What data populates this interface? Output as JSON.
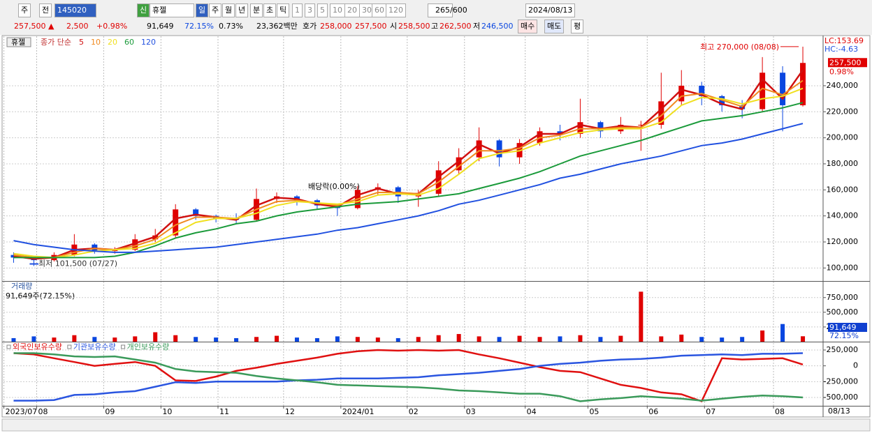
{
  "toolbar": {
    "row1": [
      "주",
      "전",
      "145020",
      "신",
      "휴젤",
      "일",
      "주",
      "월",
      "년",
      "분",
      "초",
      "틱",
      "1",
      "3",
      "5",
      "10",
      "20",
      "30",
      "60",
      "120",
      "265",
      "/600",
      "2024/08/13"
    ],
    "row2": [
      "257,500 ▲",
      "2,500",
      "+0.98%",
      "91,649",
      "72.15%",
      "0.73%",
      "23,362백만",
      "호가",
      "258,000",
      "257,500",
      "시",
      "258,500",
      "고",
      "262,500",
      "저",
      "246,500",
      "매수",
      "매도",
      "평"
    ]
  },
  "chart_data": [
    {
      "type": "candlestick",
      "title": "휴젤",
      "subtitle": "종가 단순",
      "open": [
        110000,
        108000,
        106000,
        110000,
        118000,
        113000,
        114000,
        122000,
        125000,
        145000,
        140000,
        138000,
        137000,
        153000,
        155000,
        152000,
        148000,
        146000,
        160000,
        162000,
        155000,
        157000,
        175000,
        185000,
        198000,
        185000,
        196000,
        205000,
        203000,
        212000,
        205000,
        210000,
        210000,
        228000,
        240000,
        232000,
        225000,
        222000,
        250000,
        225000
      ],
      "high": [
        112000,
        109000,
        112000,
        126000,
        119000,
        116000,
        126000,
        130000,
        149000,
        146000,
        141000,
        142000,
        161000,
        158000,
        156000,
        153000,
        149000,
        163000,
        165000,
        163000,
        160000,
        182000,
        192000,
        208000,
        199000,
        199000,
        208000,
        210000,
        230000,
        213000,
        216000,
        213000,
        250000,
        252000,
        243000,
        233000,
        229000,
        262000,
        255000,
        270000
      ],
      "low": [
        104000,
        101500,
        105000,
        109000,
        111000,
        111000,
        113000,
        120000,
        123000,
        137000,
        135000,
        134000,
        136000,
        150000,
        148000,
        145000,
        140000,
        145000,
        156000,
        150000,
        147000,
        155000,
        172000,
        182000,
        178000,
        180000,
        194000,
        198000,
        200000,
        200000,
        203000,
        190000,
        207000,
        225000,
        225000,
        220000,
        215000,
        220000,
        205000,
        224000
      ],
      "close": [
        108000,
        106000,
        110000,
        118000,
        113000,
        114000,
        122000,
        125000,
        145000,
        140000,
        138000,
        137000,
        153000,
        155000,
        152000,
        148000,
        146000,
        160000,
        162000,
        155000,
        157000,
        175000,
        185000,
        198000,
        185000,
        196000,
        205000,
        203000,
        212000,
        205000,
        210000,
        210000,
        228000,
        240000,
        232000,
        225000,
        222000,
        250000,
        225000,
        257500
      ],
      "up_color": "#e00000",
      "down_color": "#0a46e0",
      "series": [
        {
          "name": "5",
          "color": "#d01010",
          "values": [
            109000,
            107000,
            108000,
            114000,
            115000,
            114000,
            119000,
            124000,
            138000,
            141000,
            139000,
            137000,
            148000,
            154000,
            153000,
            149000,
            147000,
            156000,
            161000,
            157000,
            157000,
            170000,
            182000,
            195000,
            188000,
            193000,
            203000,
            203000,
            210000,
            207000,
            209000,
            208000,
            222000,
            237000,
            233000,
            226000,
            222000,
            245000,
            230000,
            252000
          ]
        },
        {
          "name": "10",
          "color": "#f08a20",
          "values": [
            110000,
            108000,
            108000,
            112000,
            115000,
            114000,
            117000,
            122000,
            133000,
            139000,
            139000,
            138000,
            145000,
            151000,
            152000,
            150000,
            148000,
            153000,
            158000,
            158000,
            157000,
            166000,
            178000,
            190000,
            190000,
            192000,
            200000,
            202000,
            207000,
            207000,
            208000,
            208000,
            217000,
            232000,
            234000,
            229000,
            224000,
            238000,
            233000,
            244000
          ]
        },
        {
          "name": "20",
          "color": "#f0e020",
          "values": [
            111000,
            109000,
            108000,
            110000,
            113000,
            114000,
            115000,
            119000,
            127000,
            135000,
            138000,
            138000,
            142000,
            148000,
            151000,
            150000,
            149000,
            151000,
            156000,
            157000,
            156000,
            161000,
            172000,
            184000,
            188000,
            190000,
            196000,
            200000,
            204000,
            206000,
            207000,
            207000,
            212000,
            225000,
            231000,
            230000,
            226000,
            230000,
            232000,
            238000
          ]
        },
        {
          "name": "60",
          "color": "#1a9a3a",
          "values": [
            108000,
            108000,
            108000,
            108000,
            108000,
            109000,
            112000,
            117000,
            123000,
            127000,
            130000,
            134000,
            136000,
            140000,
            143000,
            145000,
            147000,
            149000,
            150000,
            151000,
            153000,
            155000,
            157000,
            161000,
            165000,
            169000,
            174000,
            180000,
            186000,
            190000,
            194000,
            198000,
            203000,
            208000,
            213000,
            215000,
            217000,
            220000,
            223000,
            227000
          ]
        },
        {
          "name": "120",
          "color": "#2050e0",
          "values": [
            121000,
            118000,
            116000,
            114000,
            113000,
            112000,
            112000,
            113000,
            114000,
            115000,
            116000,
            118000,
            120000,
            122000,
            124000,
            126000,
            129000,
            131000,
            134000,
            137000,
            140000,
            144000,
            149000,
            152000,
            156000,
            160000,
            164000,
            169000,
            172000,
            176000,
            180000,
            183000,
            186000,
            190000,
            194000,
            196000,
            199000,
            203000,
            207000,
            211000
          ]
        }
      ],
      "xlim": [
        -0.5,
        40
      ],
      "ylim": [
        90000,
        278000
      ],
      "yticks": [
        {
          "value": 100000,
          "label": "100,000"
        },
        {
          "value": 120000,
          "label": "120,000"
        },
        {
          "value": 140000,
          "label": "140,000"
        },
        {
          "value": 160000,
          "label": "160,000"
        },
        {
          "value": 180000,
          "label": "180,000"
        },
        {
          "value": 200000,
          "label": "200,000"
        },
        {
          "value": 220000,
          "label": "220,000"
        },
        {
          "value": 240000,
          "label": "240,000"
        }
      ],
      "grid": true,
      "annotations": [
        "최고 270,000 (08/08)",
        "최저 101,500 (07/27)",
        "배당락(0.00%)"
      ],
      "lc_label": "LC:153.69",
      "hc_label": "HC:-4.63",
      "last_price": 257500,
      "last_price_label": "257,500",
      "change_label": "0.98%"
    },
    {
      "type": "bar",
      "title": "거래량",
      "subtitle": "91,649주(72.15%)",
      "values": [
        60000,
        90000,
        70000,
        110000,
        80000,
        70000,
        90000,
        160000,
        110000,
        80000,
        70000,
        60000,
        80000,
        100000,
        70000,
        60000,
        90000,
        80000,
        70000,
        60000,
        80000,
        110000,
        130000,
        90000,
        80000,
        100000,
        80000,
        90000,
        110000,
        80000,
        100000,
        850000,
        90000,
        120000,
        80000,
        70000,
        80000,
        190000,
        300000,
        91649
      ],
      "xlim": [
        -0.5,
        40
      ],
      "ylim": [
        0,
        1020000
      ],
      "yticks": [
        {
          "value": 250000,
          "label": "250,000"
        },
        {
          "value": 500000,
          "label": "500,000"
        },
        {
          "value": 750000,
          "label": "750,000"
        }
      ],
      "grid": true,
      "last_value_label": "91,649",
      "last_ratio_label": "72.15%"
    },
    {
      "type": "line",
      "series": [
        {
          "name": "외국인보유수량",
          "color": "#e01010",
          "values": [
            200000,
            180000,
            120000,
            60000,
            0,
            30000,
            60000,
            0,
            -230000,
            -240000,
            -170000,
            -80000,
            -30000,
            30000,
            80000,
            130000,
            190000,
            230000,
            250000,
            240000,
            250000,
            240000,
            250000,
            180000,
            120000,
            50000,
            -20000,
            -80000,
            -100000,
            -200000,
            -300000,
            -350000,
            -420000,
            -450000,
            -560000,
            120000,
            100000,
            110000,
            120000,
            20000
          ]
        },
        {
          "name": "기관보유수량",
          "color": "#2a55e0",
          "values": [
            -550000,
            -550000,
            -540000,
            -460000,
            -450000,
            -420000,
            -400000,
            -330000,
            -260000,
            -270000,
            -250000,
            -250000,
            -250000,
            -250000,
            -230000,
            -220000,
            -200000,
            -200000,
            -200000,
            -190000,
            -180000,
            -150000,
            -130000,
            -110000,
            -80000,
            -50000,
            0,
            30000,
            50000,
            80000,
            100000,
            110000,
            130000,
            160000,
            170000,
            180000,
            170000,
            190000,
            190000,
            200000
          ]
        },
        {
          "name": "개인보유수량",
          "color": "#3a9a5a",
          "values": [
            200000,
            200000,
            180000,
            150000,
            140000,
            150000,
            100000,
            50000,
            -50000,
            -90000,
            -100000,
            -110000,
            -160000,
            -200000,
            -230000,
            -260000,
            -300000,
            -310000,
            -320000,
            -330000,
            -340000,
            -360000,
            -390000,
            -400000,
            -420000,
            -440000,
            -440000,
            -480000,
            -560000,
            -530000,
            -510000,
            -480000,
            -500000,
            -520000,
            -550000,
            -520000,
            -490000,
            -470000,
            -480000,
            -500000
          ]
        }
      ],
      "xlim": [
        -0.5,
        40
      ],
      "ylim": [
        -632000,
        371000
      ],
      "yticks": [
        {
          "value": 250000,
          "label": "250,000"
        },
        0,
        {
          "value": -250000,
          "label": "-250,000"
        },
        {
          "value": -500000,
          "label": "-500,000"
        }
      ],
      "xticks": [
        {
          "value": -0.48,
          "label": "2023/07"
        },
        {
          "value": 1.14,
          "label": "08"
        },
        {
          "value": 4.45,
          "label": "09"
        },
        {
          "value": 7.28,
          "label": "10"
        },
        {
          "value": 10.1,
          "label": "11"
        },
        {
          "value": 13.34,
          "label": "12"
        },
        {
          "value": 16.17,
          "label": "2024/01"
        },
        {
          "value": 19.45,
          "label": "02"
        },
        {
          "value": 22.28,
          "label": "03"
        },
        {
          "value": 25.28,
          "label": "04"
        },
        {
          "value": 28.38,
          "label": "05"
        },
        {
          "value": 31.31,
          "label": "06"
        },
        {
          "value": 34.14,
          "label": "07"
        },
        {
          "value": 37.55,
          "label": "08"
        }
      ],
      "grid": true,
      "end_label": "08/13"
    }
  ]
}
